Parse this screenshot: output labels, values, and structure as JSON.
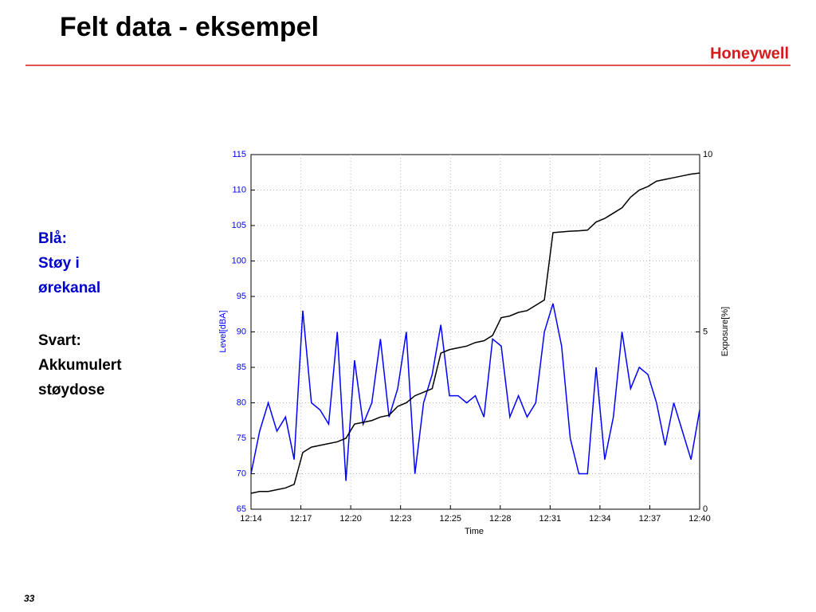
{
  "slide": {
    "title": "Felt data - eksempel",
    "logo": "Honeywell",
    "notes": [
      [
        "Blå:",
        "Støy i",
        "ørekanal"
      ],
      [
        "Svart:",
        "Akkumulert",
        "støydose"
      ]
    ],
    "page_number": "33"
  },
  "chart_data": {
    "type": "line",
    "xlabel": "Time",
    "ylabel": "Level[dBA]",
    "y2label": "Exposure[%]",
    "x": [
      734,
      734.5,
      735,
      735.5,
      736,
      736.5,
      737,
      737.5,
      738,
      738.5,
      739,
      739.5,
      740,
      740.5,
      741,
      741.5,
      742,
      742.5,
      743,
      743.5,
      744,
      744.5,
      745,
      745.5,
      746,
      746.5,
      747,
      747.5,
      748,
      748.5,
      749,
      749.5,
      750,
      750.5,
      751,
      751.5,
      752,
      752.5,
      753,
      753.5,
      754,
      754.5,
      755,
      755.5,
      756,
      756.5,
      757,
      757.5,
      758,
      758.5,
      759,
      759.5,
      760
    ],
    "series": [
      {
        "color": "#0000ff",
        "values": [
          70,
          76,
          80,
          76,
          78,
          72,
          93,
          80,
          79,
          77,
          90,
          69,
          86,
          77,
          80,
          89,
          78,
          82,
          90,
          70,
          80,
          84,
          91,
          81,
          81,
          80,
          81,
          78,
          89,
          88,
          78,
          81,
          78,
          80,
          90,
          94,
          88,
          75,
          70,
          70,
          85,
          72,
          78,
          90,
          82,
          85,
          84,
          80,
          74,
          80,
          76,
          72,
          79
        ]
      },
      {
        "color": "#000000",
        "axis": "y2",
        "values": [
          0.45,
          0.5,
          0.5,
          0.55,
          0.6,
          0.7,
          1.6,
          1.75,
          1.8,
          1.85,
          1.9,
          2.0,
          2.4,
          2.45,
          2.5,
          2.6,
          2.65,
          2.9,
          3.0,
          3.2,
          3.3,
          3.4,
          4.4,
          4.5,
          4.55,
          4.6,
          4.7,
          4.75,
          4.9,
          5.4,
          5.45,
          5.55,
          5.6,
          5.75,
          5.9,
          7.8,
          7.82,
          7.84,
          7.85,
          7.87,
          8.1,
          8.2,
          8.35,
          8.5,
          8.8,
          9.0,
          9.1,
          9.25,
          9.3,
          9.35,
          9.4,
          9.45,
          9.48
        ]
      }
    ],
    "xlim": [
      734,
      760
    ],
    "xticks": [
      {
        "value": 734,
        "label": "12:14"
      },
      {
        "value": 736.889,
        "label": "12:17"
      },
      {
        "value": 739.778,
        "label": "12:20"
      },
      {
        "value": 742.667,
        "label": "12:23"
      },
      {
        "value": 745.556,
        "label": "12:25"
      },
      {
        "value": 748.444,
        "label": "12:28"
      },
      {
        "value": 751.333,
        "label": "12:31"
      },
      {
        "value": 754.222,
        "label": "12:34"
      },
      {
        "value": 757.111,
        "label": "12:37"
      },
      {
        "value": 760,
        "label": "12:40"
      }
    ],
    "ylim": [
      65,
      115
    ],
    "yticks": [
      65,
      70,
      75,
      80,
      85,
      90,
      95,
      100,
      105,
      110,
      115
    ],
    "y2lim": [
      0,
      10
    ],
    "y2ticks": [
      0,
      5,
      10
    ],
    "grid": true
  }
}
